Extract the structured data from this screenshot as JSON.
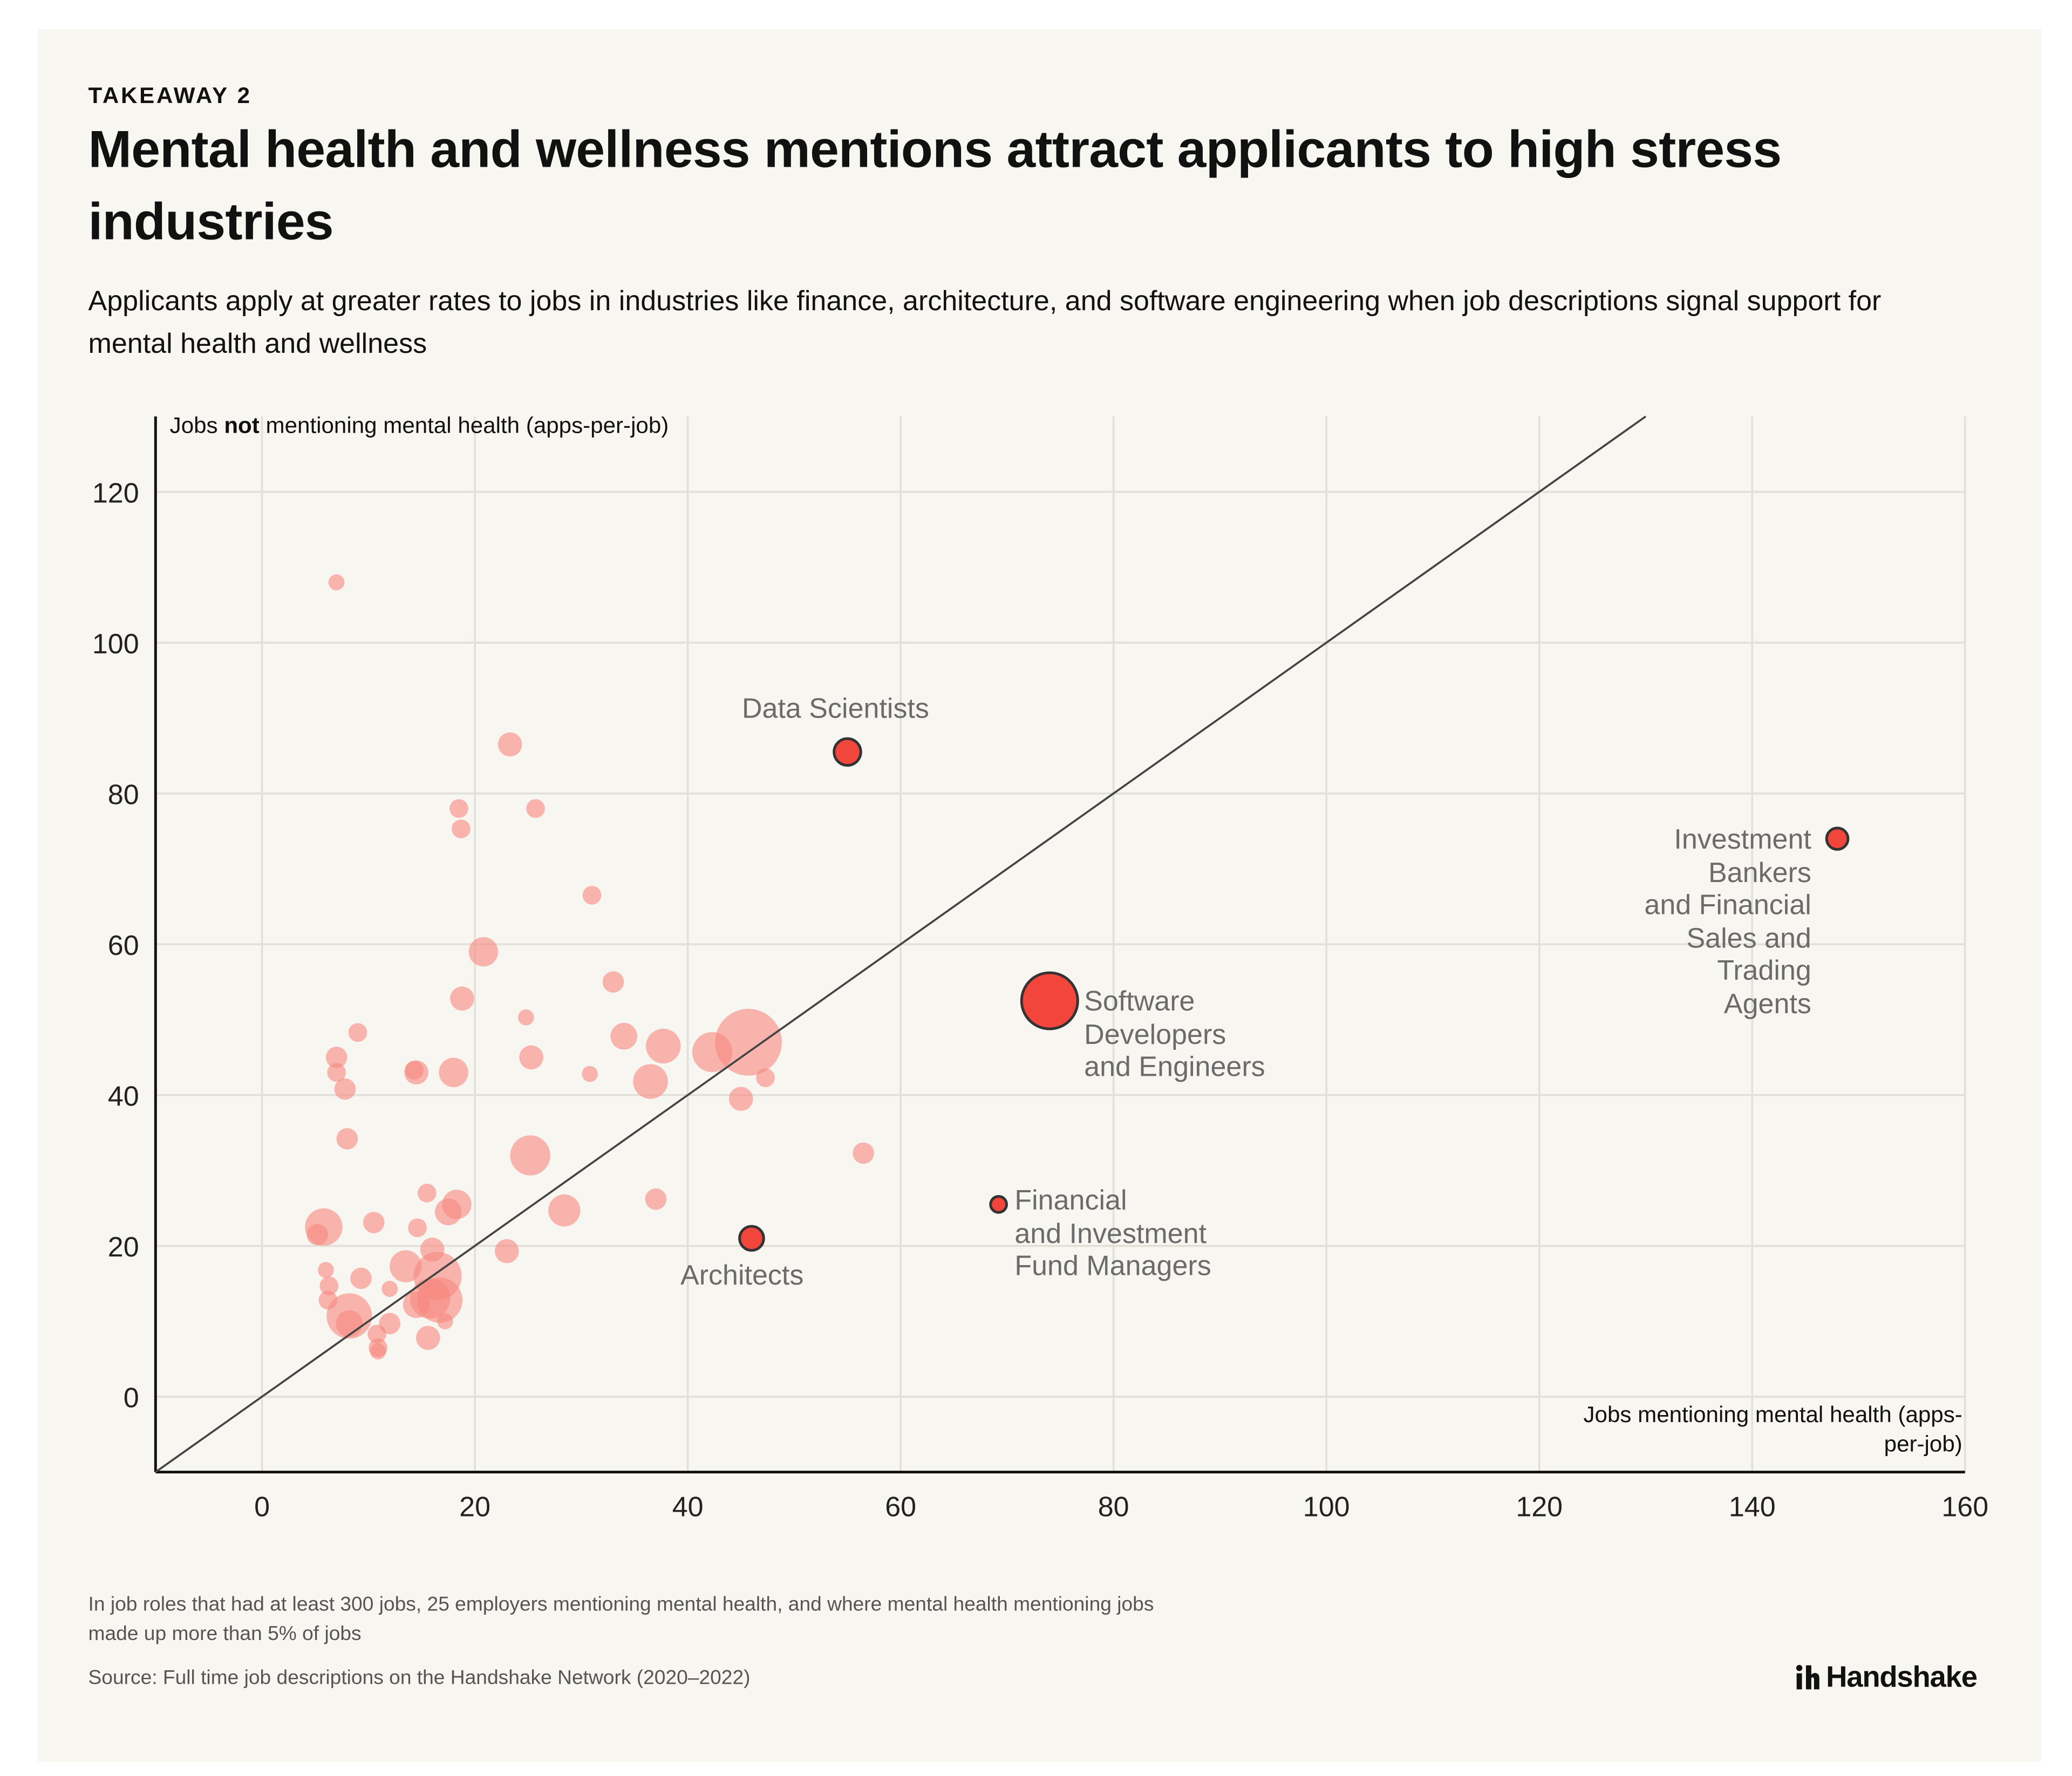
{
  "header": {
    "eyebrow": "TAKEAWAY 2",
    "title": "Mental health and wellness mentions attract applicants to high stress industries",
    "subtitle": "Applicants apply at greater rates to jobs in industries like finance, architecture, and software engineering when job descriptions signal support for mental health and wellness"
  },
  "footer": {
    "note": "In job roles that had at least 300 jobs, 25 employers mentioning mental health, and where mental health mentioning jobs made up more than 5% of jobs",
    "source": "Source: Full time job descriptions on the Handshake Network (2020–2022)",
    "logo_text": "Handshake"
  },
  "chart_data": {
    "type": "scatter",
    "xlabel": "Jobs mentioning mental health (apps-per-job)",
    "ylabel_parts": [
      "Jobs ",
      "not",
      " mentioning mental health (apps-per-job)"
    ],
    "xlim": [
      -10,
      160
    ],
    "ylim": [
      -10,
      130
    ],
    "xticks": [
      0,
      20,
      40,
      60,
      80,
      100,
      120,
      140,
      160
    ],
    "yticks": [
      0,
      20,
      40,
      60,
      80,
      100,
      120
    ],
    "grid": true,
    "reference_line": "y = x",
    "colors": {
      "highlight": "#f2463c",
      "point": "#f7877e",
      "outline": "#333333",
      "grid": "#e3e0d9",
      "label": "#6b6b6b"
    },
    "highlighted": [
      {
        "label": "Data Scientists",
        "x": 55,
        "y": 85.5,
        "size": 10
      },
      {
        "label": "Architects",
        "x": 46,
        "y": 21,
        "size": 9
      },
      {
        "label": "Software\nDevelopers\nand Engineers",
        "x": 74,
        "y": 52.5,
        "size": 21
      },
      {
        "label": "Financial\nand Investment\nFund Managers",
        "x": 69.2,
        "y": 25.5,
        "size": 6
      },
      {
        "label": "Investment\nBankers\nand Financial\nSales and\nTrading\nAgents",
        "x": 148,
        "y": 74,
        "size": 8
      }
    ],
    "points": [
      {
        "x": 7,
        "y": 108,
        "size": 6
      },
      {
        "x": 23.3,
        "y": 86.5,
        "size": 9
      },
      {
        "x": 18.5,
        "y": 78,
        "size": 7
      },
      {
        "x": 18.7,
        "y": 75.3,
        "size": 7
      },
      {
        "x": 25.7,
        "y": 78,
        "size": 7
      },
      {
        "x": 31,
        "y": 66.5,
        "size": 7
      },
      {
        "x": 20.8,
        "y": 59,
        "size": 11
      },
      {
        "x": 33,
        "y": 55,
        "size": 8
      },
      {
        "x": 18.8,
        "y": 52.8,
        "size": 9
      },
      {
        "x": 24.8,
        "y": 50.3,
        "size": 6
      },
      {
        "x": 9,
        "y": 48.3,
        "size": 7
      },
      {
        "x": 7,
        "y": 45,
        "size": 8
      },
      {
        "x": 7,
        "y": 43,
        "size": 7
      },
      {
        "x": 7.8,
        "y": 40.8,
        "size": 8
      },
      {
        "x": 34,
        "y": 47.8,
        "size": 10
      },
      {
        "x": 37.7,
        "y": 46.5,
        "size": 13
      },
      {
        "x": 42.3,
        "y": 45.7,
        "size": 15
      },
      {
        "x": 45.7,
        "y": 47,
        "size": 25
      },
      {
        "x": 47.3,
        "y": 42.3,
        "size": 7
      },
      {
        "x": 14.5,
        "y": 43,
        "size": 9
      },
      {
        "x": 14.3,
        "y": 43.3,
        "size": 7
      },
      {
        "x": 18,
        "y": 43,
        "size": 11
      },
      {
        "x": 25.3,
        "y": 45,
        "size": 9
      },
      {
        "x": 30.8,
        "y": 42.8,
        "size": 6
      },
      {
        "x": 36.5,
        "y": 41.8,
        "size": 13
      },
      {
        "x": 45,
        "y": 39.5,
        "size": 9
      },
      {
        "x": 8,
        "y": 34.2,
        "size": 8
      },
      {
        "x": 25.2,
        "y": 32,
        "size": 15
      },
      {
        "x": 56.5,
        "y": 32.3,
        "size": 8
      },
      {
        "x": 15.5,
        "y": 27,
        "size": 7
      },
      {
        "x": 18.3,
        "y": 25.5,
        "size": 11
      },
      {
        "x": 17.5,
        "y": 24.5,
        "size": 10
      },
      {
        "x": 28.4,
        "y": 24.7,
        "size": 12
      },
      {
        "x": 37,
        "y": 26.2,
        "size": 8
      },
      {
        "x": 5.8,
        "y": 22.5,
        "size": 14
      },
      {
        "x": 5.2,
        "y": 21.5,
        "size": 8
      },
      {
        "x": 10.5,
        "y": 23.1,
        "size": 8
      },
      {
        "x": 14.6,
        "y": 22.4,
        "size": 7
      },
      {
        "x": 16,
        "y": 19.5,
        "size": 9
      },
      {
        "x": 23,
        "y": 19.3,
        "size": 9
      },
      {
        "x": 13.5,
        "y": 17.3,
        "size": 12
      },
      {
        "x": 16.5,
        "y": 16,
        "size": 18
      },
      {
        "x": 6,
        "y": 16.8,
        "size": 6
      },
      {
        "x": 6.3,
        "y": 14.7,
        "size": 7
      },
      {
        "x": 6.2,
        "y": 12.8,
        "size": 7
      },
      {
        "x": 9.3,
        "y": 15.7,
        "size": 8
      },
      {
        "x": 8.2,
        "y": 10.7,
        "size": 17
      },
      {
        "x": 8.2,
        "y": 9.7,
        "size": 10
      },
      {
        "x": 12,
        "y": 14.3,
        "size": 6
      },
      {
        "x": 14.5,
        "y": 12.2,
        "size": 10
      },
      {
        "x": 15.8,
        "y": 13,
        "size": 15
      },
      {
        "x": 16.7,
        "y": 12.8,
        "size": 17
      },
      {
        "x": 17.2,
        "y": 10,
        "size": 6
      },
      {
        "x": 12,
        "y": 9.7,
        "size": 8
      },
      {
        "x": 10.8,
        "y": 8.3,
        "size": 7
      },
      {
        "x": 10.9,
        "y": 6.5,
        "size": 7
      },
      {
        "x": 10.9,
        "y": 6,
        "size": 6
      },
      {
        "x": 15.6,
        "y": 7.8,
        "size": 9
      }
    ]
  }
}
